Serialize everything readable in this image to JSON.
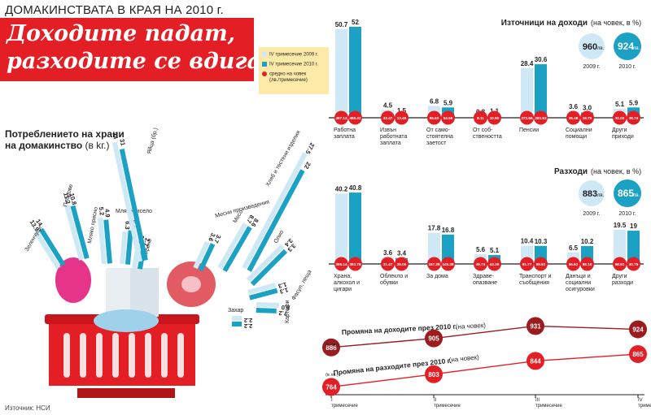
{
  "header": {
    "kicker": "ДОМАКИНСТВАТА В КРАЯ НА 2010 г.",
    "headline_line1": "Доходите падат,",
    "headline_line2": "разходите се вдигат"
  },
  "legend": {
    "series_2009": "IV тримесечие 2009 г.",
    "series_2010": "IV тримесечие 2010 г.",
    "per_person": "средно на човек",
    "per_person_unit": "(лв./тримесечие)"
  },
  "colors": {
    "light_blue": "#cfe8f6",
    "teal": "#1aa1c4",
    "red": "#e31e24",
    "dark_red": "#9b1b1e",
    "headline_bg": "#e31e24",
    "legend_bg": "#fde9a8"
  },
  "source": "Източник: НСИ",
  "food_title": "Потреблението на храни",
  "food_title2": "на домакинство",
  "food_unit": "(в kг.)",
  "chart_data": [
    {
      "id": "income",
      "type": "bar",
      "title": "Източници на доходи",
      "subtitle": "(на човек, в %)",
      "categories": [
        "Работна заплата",
        "Извън работната заплата",
        "От само-стоятелна заетост",
        "От соб-ствеността",
        "Пенсии",
        "Социални помощи",
        "Други приходи"
      ],
      "categories_lines": [
        [
          "Работна",
          "заплата"
        ],
        [
          "Извън",
          "работната",
          "заплата"
        ],
        [
          "От само-",
          "стоятелна",
          "заетост"
        ],
        [
          "От соб-",
          "ствеността"
        ],
        [
          "Пенсии"
        ],
        [
          "Социални",
          "помощи"
        ],
        [
          "Други",
          "приходи"
        ]
      ],
      "series": [
        {
          "name": "IV тримесечие 2009 г.",
          "values": [
            50.7,
            4.5,
            6.8,
            0.8,
            28.4,
            3.6,
            5.1
          ]
        },
        {
          "name": "IV тримесечие 2010 г.",
          "values": [
            52.0,
            1.5,
            5.9,
            1.1,
            30.6,
            3.0,
            5.9
          ]
        }
      ],
      "per_person_lv": [
        [
          487.13,
          480.42
        ],
        [
          43.47,
          13.49
        ],
        [
          65.63,
          54.56
        ],
        [
          8.11,
          10.6
        ],
        [
          272.66,
          282.53
        ],
        [
          25.48,
          18.79
        ],
        [
          32.0,
          38.74
        ]
      ],
      "totals": {
        "value_2009": "960",
        "unit": "лв.",
        "value_2010": "924",
        "label_2009": "2009 г.",
        "label_2010": "2010 г."
      }
    },
    {
      "id": "expenses",
      "type": "bar",
      "title": "Разходи",
      "subtitle": "(на човек, в %)",
      "categories": [
        "Храна, алкохол и цигари",
        "Облекло и обувки",
        "За дома",
        "Здраве-опазване",
        "Транспорт и съобщения",
        "Данъци и социални осигуровки",
        "Други разходи"
      ],
      "categories_lines": [
        [
          "Храна,",
          "алкохол и",
          "цигари"
        ],
        [
          "Облекло и",
          "обувки"
        ],
        [
          "За дома"
        ],
        [
          "Здраве-",
          "опазване"
        ],
        [
          "Транспорт и",
          "съобщения"
        ],
        [
          "Данъци и",
          "социални",
          "осигуровки"
        ],
        [
          "Други",
          "разходи"
        ]
      ],
      "series": [
        {
          "name": "IV тримесечие 2009 г.",
          "values": [
            40.2,
            3.6,
            17.8,
            5.6,
            10.4,
            6.5,
            19.5
          ]
        },
        {
          "name": "IV тримесечие 2010 г.",
          "values": [
            40.8,
            3.4,
            16.8,
            5.1,
            10.3,
            10.2,
            19.0
          ]
        }
      ],
      "per_person_lv": [
        [
          355.14,
          353.78
        ],
        [
          31.47,
          29.05
        ],
        [
          157.28,
          145.38
        ],
        [
          49.74,
          43.39
        ],
        [
          91.77,
          89.52
        ],
        [
          56.62,
          88.18
        ],
        [
          58.92,
          40.75
        ]
      ],
      "totals": {
        "value_2009": "883",
        "unit": "лв.",
        "value_2010": "865",
        "label_2009": "2009 г.",
        "label_2010": "2010 г."
      }
    },
    {
      "id": "quarterly",
      "type": "line",
      "categories": [
        "I тримесечие",
        "II тримесечие",
        "III тримесечие",
        "IV тримесечие"
      ],
      "categories_lines": [
        [
          "I",
          "тримесечие"
        ],
        [
          "II",
          "тримесечие"
        ],
        [
          "III",
          "тримесечие"
        ],
        [
          "IV",
          "тримесечие"
        ]
      ],
      "series": [
        {
          "name": "Промяна на доходите през 2010 г.",
          "unit_note": "(на човек)",
          "values": [
            886,
            905,
            931,
            924
          ]
        },
        {
          "name": "Промяна на разходите през 2010 г.",
          "unit_note": "(на човек)",
          "values": [
            764,
            803,
            844,
            865
          ]
        }
      ],
      "unit_label": "(в лв.)"
    },
    {
      "id": "food",
      "type": "bar",
      "orientation": "radial",
      "title": "Потреблението на храни на домакинство",
      "unit": "(в kг.)",
      "categories": [
        "Зеленчуци",
        "Плодове",
        "Мляко прясно",
        "Мляко кисело",
        "Сирене",
        "Яйца (бр.)",
        "Месни произведения",
        "Месо",
        "Хляб и тестени изделия",
        "Олио",
        "Фасул, леща",
        "Картофи",
        "Захар"
      ],
      "series": [
        {
          "name": "IV тримесечие 2009 г.",
          "values": [
            13.9,
            11.2,
            5.2,
            6.3,
            3.0,
            34,
            3.6,
            8.7,
            27.5,
            3.4,
            1.3,
            8.0,
            2.2
          ]
        },
        {
          "name": "IV тримесечие 2010 г.",
          "values": [
            14.0,
            10.8,
            4.9,
            6.8,
            2.7,
            31,
            3.7,
            8.6,
            22.0,
            3.3,
            1.3,
            7.2,
            2.2
          ]
        }
      ]
    }
  ]
}
